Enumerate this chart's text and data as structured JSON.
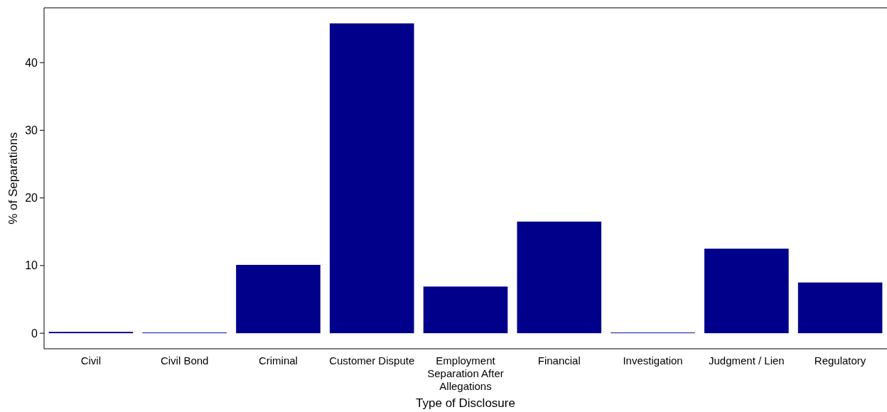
{
  "chart_data": {
    "type": "bar",
    "xlabel": "Type of Disclosure",
    "ylabel": "% of Separations",
    "categories": [
      "Civil",
      "Civil Bond",
      "Criminal",
      "Customer Dispute",
      "Employment Separation After Allegations",
      "Financial",
      "Investigation",
      "Judgment / Lien",
      "Regulatory"
    ],
    "values": [
      0.2,
      0.1,
      10.1,
      45.8,
      6.9,
      16.5,
      0.1,
      12.5,
      7.5
    ],
    "color": "#00008b",
    "ylim": [
      -2.3,
      48.1
    ],
    "yticks": [
      0,
      10,
      20,
      30,
      40
    ]
  }
}
